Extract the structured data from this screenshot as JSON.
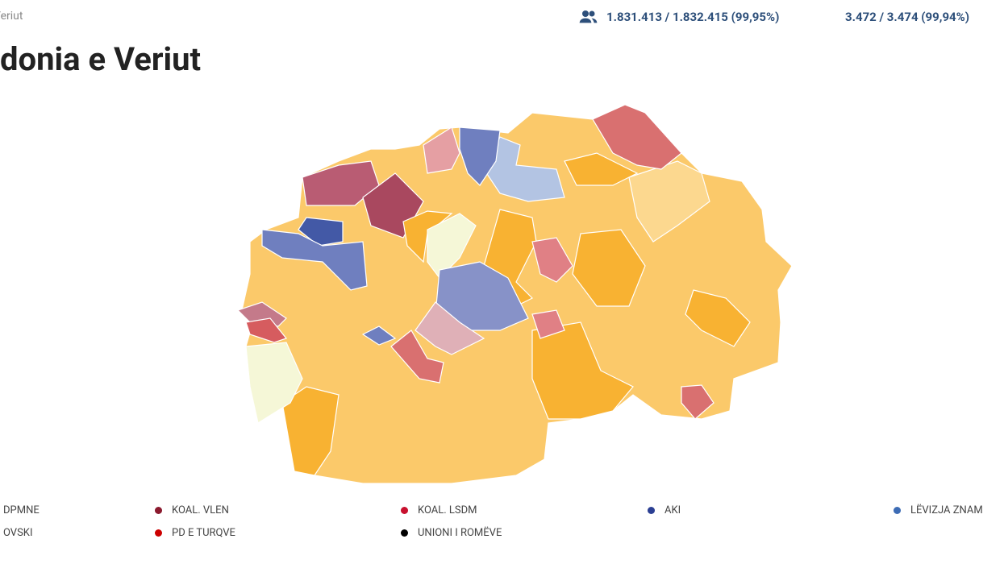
{
  "header": {
    "breadcrumb": "Veriut",
    "title": "donia e Veriut"
  },
  "stats": {
    "voters": "1.831.413 / 1.832.415 (99,95%)",
    "stations": "3.472 / 3.474 (99,94%)"
  },
  "legend": [
    {
      "label": "DPMNE",
      "color": null
    },
    {
      "label": "KOAL. VLEN",
      "color": "#8b1a2e"
    },
    {
      "label": "KOAL. LSDM",
      "color": "#c8102e"
    },
    {
      "label": "AKI",
      "color": "#2b3f93"
    },
    {
      "label": "LËVIZJA ZNAM",
      "color": "#3d6cb5"
    },
    {
      "label": "OVSKI",
      "color": null
    },
    {
      "label": "PD E TURQVE",
      "color": "#cc0000"
    },
    {
      "label": "UNIONI I ROMËVE",
      "color": "#000000"
    }
  ]
}
